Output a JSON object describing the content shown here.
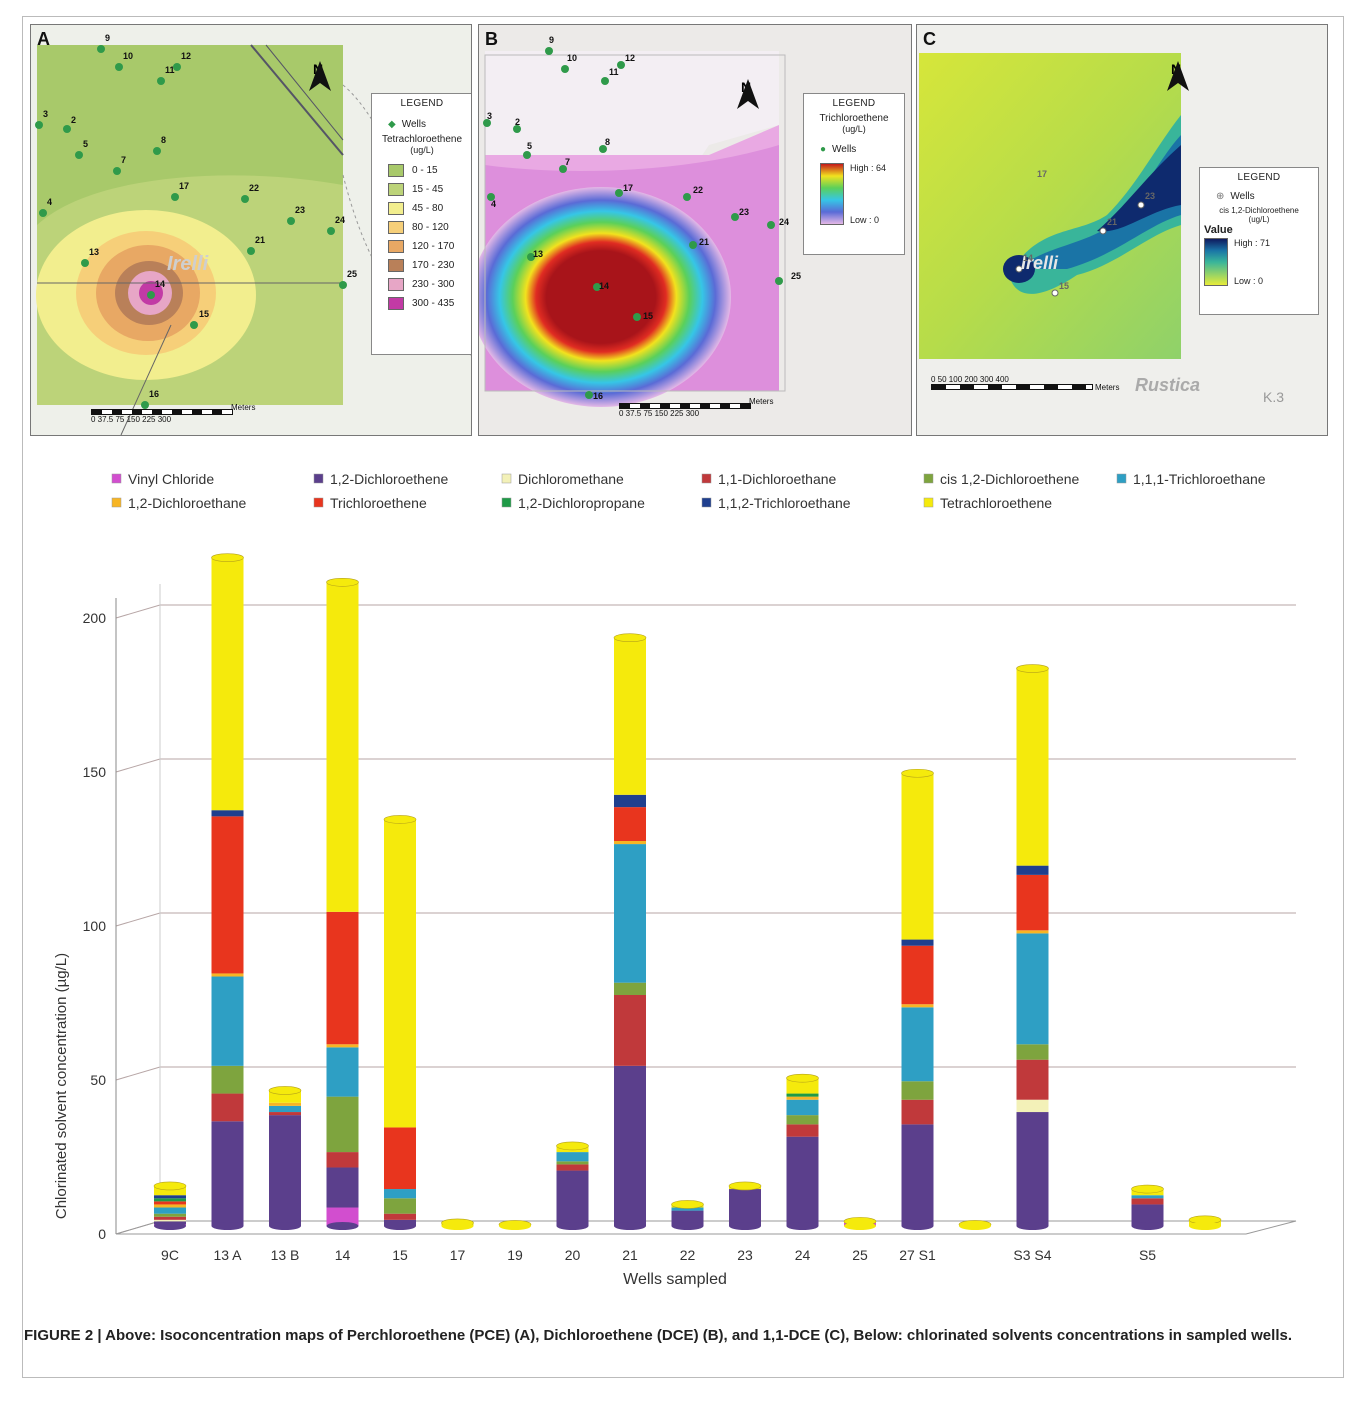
{
  "maps": [
    {
      "letter": "A",
      "legend_title": "LEGEND",
      "wells_label": "Wells",
      "substance": "Tetrachloroethene",
      "unit": "(ug/L)",
      "classes": [
        {
          "label": "0 - 15",
          "color": "#a8c96a"
        },
        {
          "label": "15 - 45",
          "color": "#bcd379"
        },
        {
          "label": "45 - 80",
          "color": "#f2ee8e"
        },
        {
          "label": "80 - 120",
          "color": "#f6cf79"
        },
        {
          "label": "120 - 170",
          "color": "#e8a864"
        },
        {
          "label": "170 - 230",
          "color": "#b98059"
        },
        {
          "label": "230 - 300",
          "color": "#e7a6c6"
        },
        {
          "label": "300 - 435",
          "color": "#c23aa5"
        }
      ],
      "scale_unit": "Meters",
      "scale_ticks": "0 37.5 75      150    225    300",
      "north": "N",
      "wells": [
        "9",
        "10",
        "11",
        "12",
        "3",
        "2",
        "5",
        "8",
        "7",
        "17",
        "22",
        "23",
        "24",
        "4",
        "21",
        "13",
        "25",
        "14",
        "15",
        "16"
      ],
      "place": "Irelli"
    },
    {
      "letter": "B",
      "legend_title": "LEGEND",
      "wells_label": "Wells",
      "substance": "Trichloroethene",
      "unit": "(ug/L)",
      "high": "High : 64",
      "low": "Low : 0",
      "scale_unit": "Meters",
      "scale_ticks": "0 37.5 75      150    225    300",
      "north": "N",
      "wells": [
        "9",
        "10",
        "11",
        "12",
        "3",
        "2",
        "5",
        "8",
        "7",
        "17",
        "22",
        "23",
        "24",
        "4",
        "21",
        "13",
        "25",
        "14",
        "15",
        "16"
      ]
    },
    {
      "letter": "C",
      "legend_title": "LEGEND",
      "wells_label": "Wells",
      "substance": "cis 1,2-Dichloroethene",
      "unit": "(ug/L)",
      "value_label": "Value",
      "high": "High : 71",
      "low": "Low : 0",
      "scale_unit": "Meters",
      "scale_ticks": "0  50 100      200     300    400",
      "north": "N",
      "wells": [
        "21",
        "23",
        "14",
        "15",
        "17"
      ],
      "place": "Irelli",
      "place2": "Rustica",
      "sheet": "K.3"
    }
  ],
  "chart_data": {
    "type": "bar",
    "stacked": true,
    "ylabel": "Chlorinated solvent concentration (µg/L)",
    "xlabel": "Wells sampled",
    "ylim": [
      0,
      200
    ],
    "yticks": [
      0,
      50,
      100,
      150,
      200
    ],
    "categories": [
      "9C",
      "13 A",
      "13 B",
      "14",
      "15",
      "17",
      "19",
      "20",
      "21",
      "22",
      "23",
      "24",
      "25",
      "27",
      "S1",
      "S3",
      "S4",
      "S5",
      ""
    ],
    "tick_labels": [
      "9C",
      "13 A",
      "13 B",
      "14",
      "15",
      "17",
      "19",
      "20",
      "21",
      "22",
      "23",
      "24",
      "25",
      "27  S1",
      "",
      "S3   S4",
      "",
      "S5",
      ""
    ],
    "series": [
      {
        "name": "Vinyl Chloride",
        "color": "#d24ecf",
        "values": [
          0.5,
          0,
          0,
          6,
          0,
          0,
          0,
          0,
          0,
          0,
          0,
          0,
          1,
          0,
          0,
          0,
          0,
          0,
          0
        ]
      },
      {
        "name": "1,2-Dichloroethene",
        "color": "#5b3f8c",
        "values": [
          1,
          34,
          36,
          13,
          2,
          0,
          0,
          18,
          52,
          5,
          12,
          29,
          0,
          33,
          0,
          37,
          0,
          7,
          0
        ]
      },
      {
        "name": "Dichloromethane",
        "color": "#f3f1b8",
        "values": [
          0.5,
          0,
          0,
          0,
          0,
          0,
          0,
          0,
          0,
          0,
          0,
          0,
          0,
          0,
          0,
          4,
          0,
          0,
          0
        ]
      },
      {
        "name": "1,1-Dichloroethane",
        "color": "#c0393b",
        "values": [
          1,
          9,
          1,
          5,
          2,
          0,
          0,
          2,
          23,
          0,
          0,
          4,
          0,
          8,
          0,
          13,
          0,
          2,
          0
        ]
      },
      {
        "name": "cis 1,2-Dichloroethene",
        "color": "#7ea43e",
        "values": [
          1,
          9,
          0,
          18,
          5,
          0,
          0,
          1,
          4,
          0,
          0,
          3,
          0,
          6,
          0,
          5,
          0,
          0,
          0
        ]
      },
      {
        "name": "1,1,1-Trichloroethane",
        "color": "#2e9fc4",
        "values": [
          2,
          29,
          2,
          16,
          3,
          0,
          0,
          3,
          45,
          1,
          0,
          5,
          0,
          24,
          0,
          36,
          0,
          1,
          0
        ]
      },
      {
        "name": "1,2-Dichloroethane",
        "color": "#f7b524",
        "values": [
          1,
          1,
          1,
          1,
          0,
          0,
          0,
          0,
          1,
          0,
          0,
          1,
          0,
          1,
          0,
          1,
          0,
          0,
          0
        ]
      },
      {
        "name": "Trichloroethene",
        "color": "#e8351e",
        "values": [
          1,
          51,
          0,
          43,
          20,
          0,
          0,
          0,
          11,
          0,
          0,
          0,
          0,
          19,
          0,
          18,
          0,
          0,
          0
        ]
      },
      {
        "name": "1,2-Dichloropropane",
        "color": "#1f9a47",
        "values": [
          1,
          0,
          0,
          0,
          0,
          0,
          0,
          0,
          0,
          0,
          0,
          1,
          0,
          0,
          0,
          0,
          0,
          0,
          0
        ]
      },
      {
        "name": "1,1,2-Trichloroethane",
        "color": "#1f3f8e",
        "values": [
          1,
          2,
          0,
          0,
          0,
          0,
          0,
          0,
          4,
          0,
          0,
          0,
          0,
          2,
          0,
          3,
          0,
          0,
          0
        ]
      },
      {
        "name": "Tetrachloroethene",
        "color": "#f5ea0c",
        "values": [
          3,
          82,
          4,
          107,
          100,
          1,
          0.5,
          2,
          51,
          1,
          1,
          5,
          0.5,
          54,
          0.5,
          64,
          0,
          2,
          2
        ]
      }
    ]
  },
  "caption": {
    "label": "FIGURE 2 |",
    "text": " Above: Isoconcentration maps of Perchloroethene (PCE) (A), Dichloroethene (DCE) (B), and 1,1-DCE (C), Below: chlorinated solvents concentrations in sampled wells."
  }
}
